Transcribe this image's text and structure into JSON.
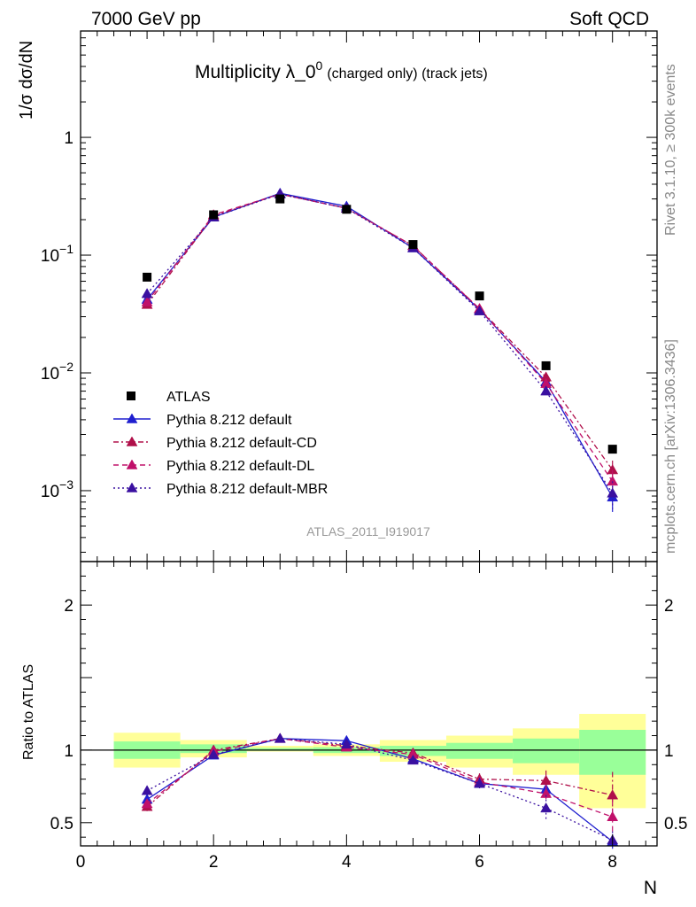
{
  "header": {
    "left": "7000 GeV pp",
    "right": "Soft QCD"
  },
  "side_text": {
    "rivet": "Rivet 3.1.10, ≥ 300k events",
    "mcplots": "mcplots.cern.ch [arXiv:1306.3436]"
  },
  "analysis_id": "ATLAS_2011_I919017",
  "chart_data": [
    {
      "type": "scatter",
      "name": "main",
      "title_main": "Multiplicity λ_0",
      "title_sup": "0",
      "title_small": "(charged only) (track jets)",
      "ylabel": "1/σ dσ/dN",
      "yscale": "log",
      "ylim": [
        0.00025,
        8
      ],
      "xlim": [
        0,
        8.67
      ],
      "y_tick_labels": [
        {
          "value": 1,
          "label": "1"
        },
        {
          "value": 0.1,
          "base": "10",
          "exp": "−1"
        },
        {
          "value": 0.01,
          "base": "10",
          "exp": "−2"
        },
        {
          "value": 0.001,
          "base": "10",
          "exp": "−3"
        }
      ],
      "x": [
        1,
        2,
        3,
        4,
        5,
        6,
        7,
        8
      ],
      "data": {
        "name": "ATLAS",
        "values": [
          0.065,
          0.22,
          0.3,
          0.245,
          0.123,
          0.045,
          0.0115,
          0.00225
        ]
      },
      "series": [
        {
          "name": "Pythia 8.212 default",
          "color": "#1f1fcf",
          "dash": "",
          "values": [
            0.042,
            0.21,
            0.335,
            0.26,
            0.115,
            0.0345,
            0.0084,
            0.00088
          ],
          "errors": [
            0.002,
            0.004,
            0.004,
            0.004,
            0.002,
            0.0007,
            0.0004,
            0.00022
          ]
        },
        {
          "name": "Pythia 8.212 default-CD",
          "color": "#b0104a",
          "dash": "6,3,2,3",
          "values": [
            0.038,
            0.215,
            0.33,
            0.25,
            0.12,
            0.035,
            0.0092,
            0.0015
          ],
          "errors": [
            0.002,
            0.004,
            0.004,
            0.004,
            0.002,
            0.0007,
            0.0005,
            0.0003
          ]
        },
        {
          "name": "Pythia 8.212 default-DL",
          "color": "#c0106a",
          "dash": "6,4",
          "values": [
            0.04,
            0.22,
            0.33,
            0.25,
            0.12,
            0.035,
            0.0081,
            0.0012
          ],
          "errors": [
            0.002,
            0.004,
            0.004,
            0.004,
            0.002,
            0.0007,
            0.0005,
            0.0003
          ]
        },
        {
          "name": "Pythia 8.212 default-MBR",
          "color": "#3a10a0",
          "dash": "2,3",
          "values": [
            0.047,
            0.21,
            0.33,
            0.25,
            0.115,
            0.0335,
            0.007,
            0.00095
          ],
          "errors": [
            0.002,
            0.004,
            0.004,
            0.004,
            0.002,
            0.0007,
            0.0005,
            0.00025
          ]
        }
      ]
    },
    {
      "type": "scatter",
      "name": "ratio",
      "ylabel": "Ratio to ATLAS",
      "xlabel": "N",
      "ylim": [
        0.34,
        2.3
      ],
      "xlim": [
        0,
        8.67
      ],
      "x_ticks": [
        0,
        2,
        4,
        6,
        8
      ],
      "x_tick_labels": [
        "0",
        "2",
        "4",
        "6",
        "8"
      ],
      "y_ticks": [
        0.5,
        1,
        2
      ],
      "y_tick_labels": [
        "0.5",
        "1",
        "2"
      ],
      "bands": [
        {
          "x0": 0.5,
          "x1": 1.5,
          "yellow": [
            0.88,
            1.12
          ],
          "green": [
            0.94,
            1.06
          ]
        },
        {
          "x0": 1.5,
          "x1": 2.5,
          "yellow": [
            0.95,
            1.07
          ],
          "green": [
            0.98,
            1.04
          ]
        },
        {
          "x0": 2.5,
          "x1": 3.5,
          "yellow": [
            0.99,
            1.03
          ],
          "green": [
            0.995,
            1.015
          ]
        },
        {
          "x0": 3.5,
          "x1": 4.5,
          "yellow": [
            0.96,
            1.04
          ],
          "green": [
            0.98,
            1.02
          ]
        },
        {
          "x0": 4.5,
          "x1": 5.5,
          "yellow": [
            0.92,
            1.07
          ],
          "green": [
            0.96,
            1.03
          ]
        },
        {
          "x0": 5.5,
          "x1": 6.5,
          "yellow": [
            0.88,
            1.1
          ],
          "green": [
            0.94,
            1.05
          ]
        },
        {
          "x0": 6.5,
          "x1": 7.5,
          "yellow": [
            0.83,
            1.15
          ],
          "green": [
            0.91,
            1.08
          ]
        },
        {
          "x0": 7.5,
          "x1": 8.5,
          "yellow": [
            0.6,
            1.25
          ],
          "green": [
            0.83,
            1.14
          ]
        }
      ],
      "series": [
        {
          "name": "Pythia 8.212 default",
          "values": [
            0.66,
            0.965,
            1.08,
            1.065,
            0.94,
            0.77,
            0.73,
            0.37
          ],
          "errors": [
            0.02,
            0.01,
            0.01,
            0.01,
            0.015,
            0.03,
            0.05,
            0.05
          ]
        },
        {
          "name": "Pythia 8.212 default-CD",
          "values": [
            0.61,
            1.0,
            1.08,
            1.03,
            0.98,
            0.8,
            0.79,
            0.69
          ],
          "errors": [
            0.03,
            0.01,
            0.01,
            0.01,
            0.015,
            0.04,
            0.07,
            0.16
          ]
        },
        {
          "name": "Pythia 8.212 default-DL",
          "values": [
            0.63,
            0.99,
            1.08,
            1.02,
            0.97,
            0.78,
            0.7,
            0.54
          ],
          "errors": [
            0.03,
            0.01,
            0.01,
            0.01,
            0.015,
            0.04,
            0.06,
            0.12
          ]
        },
        {
          "name": "Pythia 8.212 default-MBR",
          "values": [
            0.72,
            0.97,
            1.08,
            1.04,
            0.93,
            0.77,
            0.6,
            0.38
          ],
          "errors": [
            0.03,
            0.01,
            0.01,
            0.01,
            0.015,
            0.04,
            0.09,
            0.06
          ]
        }
      ]
    }
  ]
}
